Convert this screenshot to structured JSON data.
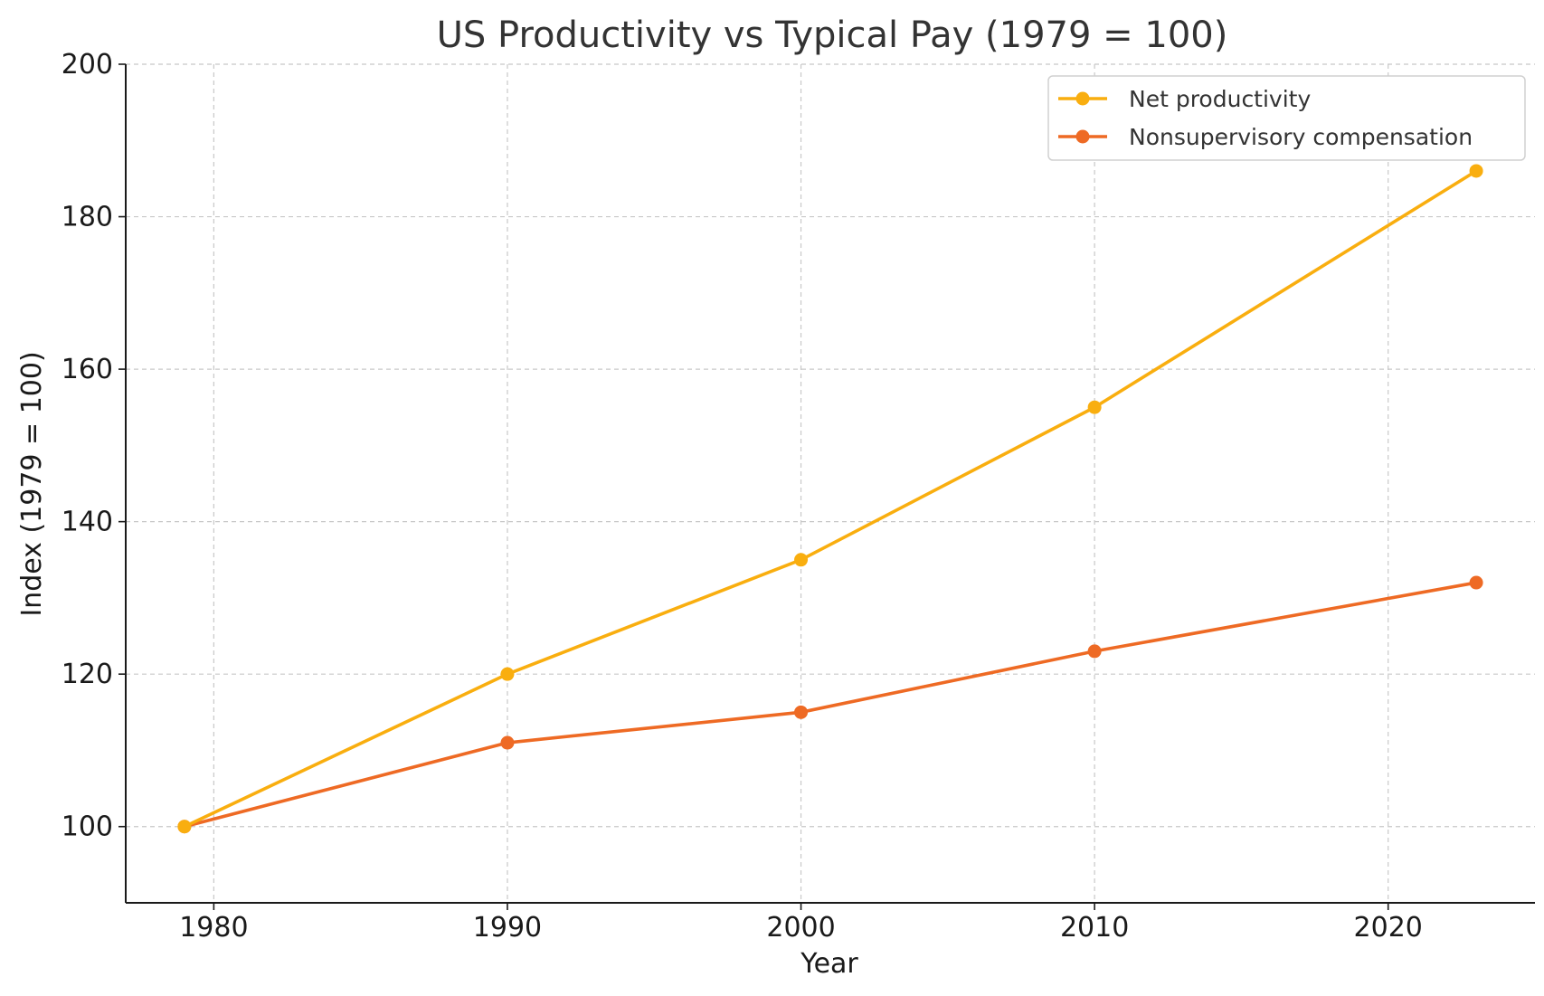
{
  "chart_data": {
    "type": "line",
    "title": "US Productivity vs Typical Pay (1979 = 100)",
    "xlabel": "Year",
    "ylabel": "Index (1979 = 100)",
    "xlim": [
      1977,
      2025
    ],
    "ylim": [
      90,
      200
    ],
    "xticks": [
      1980,
      1990,
      2000,
      2010,
      2020
    ],
    "yticks": [
      100,
      120,
      140,
      160,
      180,
      200
    ],
    "grid": true,
    "legend_position": "top-right",
    "x": [
      1979,
      1990,
      2000,
      2010,
      2023
    ],
    "series": [
      {
        "name": "Net productivity",
        "color": "#F9AE0F",
        "values": [
          100,
          120,
          135,
          155,
          186
        ]
      },
      {
        "name": "Nonsupervisory compensation",
        "color": "#EE6A24",
        "values": [
          100,
          111,
          115,
          123,
          132
        ]
      }
    ]
  }
}
